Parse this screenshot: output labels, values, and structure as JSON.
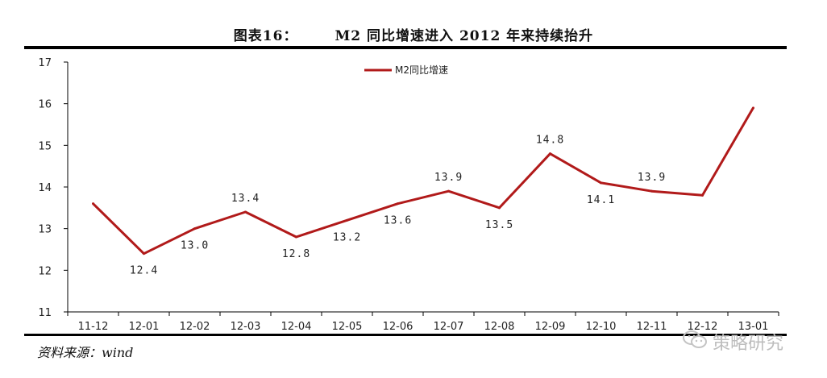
{
  "header": {
    "figure_number": "图表16：",
    "title": "M2 同比增速进入 2012 年来持续抬升"
  },
  "source": "资料来源：wind",
  "watermark": {
    "text": "策略研究",
    "icon": "wechat-icon"
  },
  "chart_data": {
    "type": "line",
    "categories": [
      "11-12",
      "12-01",
      "12-02",
      "12-03",
      "12-04",
      "12-05",
      "12-06",
      "12-07",
      "12-08",
      "12-09",
      "12-10",
      "12-11",
      "12-12",
      "13-01"
    ],
    "series": [
      {
        "name": "M2同比增速",
        "values": [
          13.6,
          12.4,
          13.0,
          13.4,
          12.8,
          13.2,
          13.6,
          13.9,
          13.5,
          14.8,
          14.1,
          13.9,
          13.8,
          15.9
        ],
        "color": "#b11a1a"
      }
    ],
    "data_labels": [
      "",
      "12.4",
      "13.0",
      "13.4",
      "12.8",
      "13.2",
      "13.6",
      "13.9",
      "13.5",
      "14.8",
      "14.1",
      "13.9",
      "",
      ""
    ],
    "ylim": [
      11,
      17
    ],
    "yticks": [
      11,
      12,
      13,
      14,
      15,
      16,
      17
    ],
    "xlabel": "",
    "ylabel": "",
    "legend_position": "top-center",
    "grid": false
  }
}
